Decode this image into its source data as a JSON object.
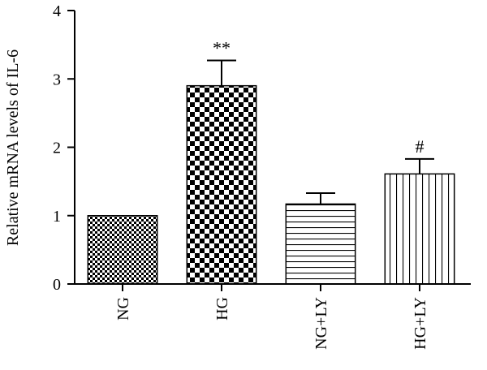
{
  "chart_data": {
    "type": "bar",
    "title": "",
    "xlabel": "",
    "ylabel": "Relative mRNA levels of IL-6",
    "ylim": [
      0,
      4
    ],
    "yticks": [
      "0",
      "1",
      "2",
      "3",
      "4"
    ],
    "grid": false,
    "categories": [
      "NG",
      "HG",
      "NG+LY",
      "HG+LY"
    ],
    "values": [
      1.0,
      2.9,
      1.17,
      1.61
    ],
    "errors": [
      0.0,
      0.37,
      0.16,
      0.22
    ],
    "annotations": [
      "",
      "**",
      "",
      "#"
    ],
    "patterns": [
      "checker-fine",
      "checker-coarse",
      "horizontal-lines",
      "vertical-lines"
    ]
  }
}
